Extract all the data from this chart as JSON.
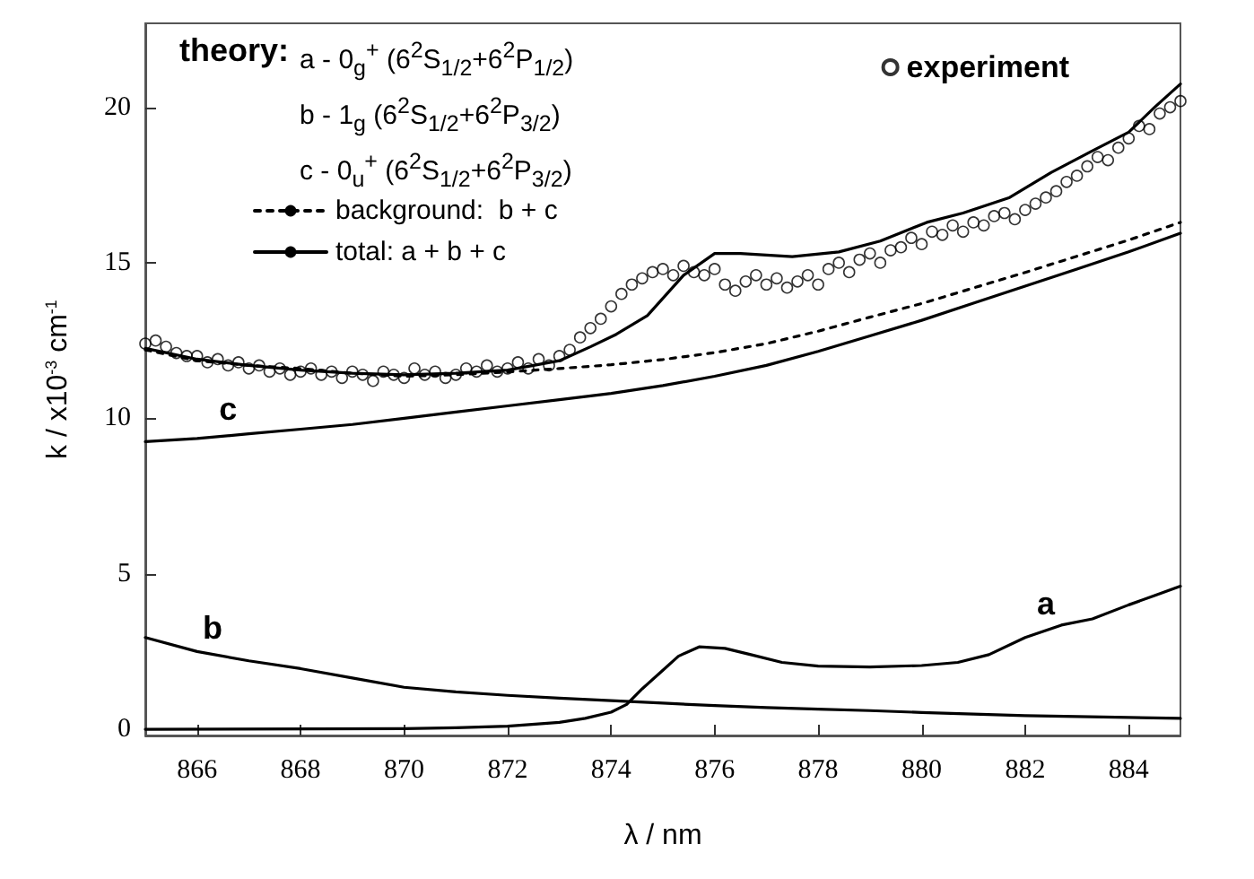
{
  "chart_data": {
    "type": "line",
    "xlabel": "λ / nm",
    "ylabel": "k / x10$^{-3}$ cm$^{-1}$",
    "legend_title": "theory:",
    "xlim": [
      865,
      885
    ],
    "xticks": [
      866,
      868,
      870,
      872,
      874,
      876,
      878,
      880,
      882,
      884
    ],
    "ylim": [
      -0.2,
      22.7
    ],
    "yticks": [
      0,
      5,
      10,
      15,
      20
    ],
    "grid": false,
    "legend": "top left",
    "annotations": [
      "a -  0$_{g}$$^{+}$ (6$^{2}$S$_{1/2}$+6$^{2}$P$_{1/2}$)",
      "b -  1$_{g}$ (6$^{2}$S$_{1/2}$+6$^{2}$P$_{3/2}$)",
      "c -  0$_{u}$$^{+}$ (6$^{2}$S$_{1/2}$+6$^{2}$P$_{3/2}$)",
      {
        "text": "a",
        "x": 882.4,
        "y": 3.18
      },
      {
        "text": "b",
        "x": 866.3,
        "y": 2.41
      },
      {
        "text": "c",
        "x": 866.6,
        "y": 9.44
      }
    ],
    "series": [
      {
        "color": "#000000",
        "line_style": "solid",
        "marker": "none",
        "x": [
          865,
          870,
          871,
          872,
          873,
          873.5,
          874,
          874.3,
          874.6,
          875,
          875.3,
          875.7,
          876.2,
          876.7,
          877.3,
          878,
          879,
          880,
          880.7,
          881.3,
          882,
          882.7,
          883.3,
          884,
          884.5,
          885
        ],
        "values": [
          0,
          0.02,
          0.05,
          0.1,
          0.22,
          0.35,
          0.55,
          0.8,
          1.3,
          1.9,
          2.35,
          2.65,
          2.6,
          2.4,
          2.15,
          2.03,
          2.0,
          2.05,
          2.15,
          2.4,
          2.95,
          3.35,
          3.55,
          4.0,
          4.3,
          4.6
        ]
      },
      {
        "color": "#000000",
        "line_style": "solid",
        "marker": "none",
        "x": [
          865,
          866,
          867,
          868,
          869,
          870,
          871,
          872,
          873,
          874,
          875,
          876,
          877,
          878,
          879,
          880,
          881,
          882,
          883,
          884,
          885
        ],
        "values": [
          2.95,
          2.5,
          2.2,
          1.95,
          1.65,
          1.35,
          1.2,
          1.09,
          1.0,
          0.92,
          0.84,
          0.76,
          0.7,
          0.65,
          0.6,
          0.54,
          0.49,
          0.44,
          0.41,
          0.38,
          0.35
        ]
      },
      {
        "color": "#000000",
        "line_style": "solid",
        "marker": "none",
        "x": [
          865,
          866,
          867,
          868,
          869,
          870,
          871,
          872,
          873,
          874,
          875,
          876,
          877,
          878,
          879,
          880,
          881,
          882,
          883,
          884,
          885
        ],
        "values": [
          9.25,
          9.35,
          9.5,
          9.65,
          9.8,
          10.0,
          10.2,
          10.4,
          10.6,
          10.8,
          11.05,
          11.35,
          11.7,
          12.15,
          12.65,
          13.15,
          13.7,
          14.25,
          14.8,
          15.35,
          15.95
        ]
      },
      {
        "name": "background:  b + c",
        "color": "#000000",
        "line_style": "dashed",
        "marker": "none",
        "x": [
          865,
          866,
          867,
          868,
          869,
          870,
          871,
          872,
          873,
          874,
          875,
          876,
          877,
          878,
          879,
          880,
          881,
          882,
          883,
          884,
          885
        ],
        "values": [
          12.2,
          11.85,
          11.7,
          11.6,
          11.45,
          11.35,
          11.4,
          11.49,
          11.6,
          11.72,
          11.89,
          12.11,
          12.4,
          12.8,
          13.25,
          13.69,
          14.19,
          14.69,
          15.21,
          15.73,
          16.3
        ]
      },
      {
        "name": "total: a + b + c",
        "color": "#000000",
        "line_style": "solid",
        "marker": "none",
        "x": [
          865,
          866,
          867,
          868,
          869,
          870,
          871,
          872,
          873,
          873.6,
          874.1,
          874.7,
          875.4,
          876,
          876.5,
          877.5,
          878.4,
          879.2,
          880.1,
          880.8,
          881.7,
          882.5,
          883.3,
          884,
          884.5,
          885
        ],
        "values": [
          12.25,
          11.9,
          11.7,
          11.55,
          11.45,
          11.4,
          11.45,
          11.55,
          11.85,
          12.3,
          12.7,
          13.3,
          14.6,
          15.3,
          15.3,
          15.2,
          15.35,
          15.7,
          16.3,
          16.6,
          17.1,
          17.9,
          18.6,
          19.2,
          20.0,
          20.75
        ]
      },
      {
        "name": "experiment",
        "type": "scatter",
        "color": "#000000",
        "marker": "circle",
        "x": [
          865.0,
          865.2,
          865.4,
          865.6,
          865.8,
          866.0,
          866.2,
          866.4,
          866.6,
          866.8,
          867.0,
          867.2,
          867.4,
          867.6,
          867.8,
          868.0,
          868.2,
          868.4,
          868.6,
          868.8,
          869.0,
          869.2,
          869.4,
          869.6,
          869.8,
          870.0,
          870.2,
          870.4,
          870.6,
          870.8,
          871.0,
          871.2,
          871.4,
          871.6,
          871.8,
          872.0,
          872.2,
          872.4,
          872.6,
          872.8,
          873.0,
          873.2,
          873.4,
          873.6,
          873.8,
          874.0,
          874.2,
          874.4,
          874.6,
          874.8,
          875.0,
          875.2,
          875.4,
          875.6,
          875.8,
          876.0,
          876.2,
          876.4,
          876.6,
          876.8,
          877.0,
          877.2,
          877.4,
          877.6,
          877.8,
          878.0,
          878.2,
          878.4,
          878.6,
          878.8,
          879.0,
          879.2,
          879.4,
          879.6,
          879.8,
          880.0,
          880.2,
          880.4,
          880.6,
          880.8,
          881.0,
          881.2,
          881.4,
          881.6,
          881.8,
          882.0,
          882.2,
          882.4,
          882.6,
          882.8,
          883.0,
          883.2,
          883.4,
          883.6,
          883.8,
          884.0,
          884.2,
          884.4,
          884.6,
          884.8,
          885.0
        ],
        "values": [
          12.4,
          12.5,
          12.3,
          12.1,
          12.0,
          12.0,
          11.8,
          11.9,
          11.7,
          11.8,
          11.6,
          11.7,
          11.5,
          11.6,
          11.4,
          11.5,
          11.6,
          11.4,
          11.5,
          11.3,
          11.5,
          11.4,
          11.2,
          11.5,
          11.4,
          11.3,
          11.6,
          11.4,
          11.5,
          11.3,
          11.4,
          11.6,
          11.5,
          11.7,
          11.5,
          11.6,
          11.8,
          11.6,
          11.9,
          11.7,
          12.0,
          12.2,
          12.6,
          12.9,
          13.2,
          13.6,
          14.0,
          14.3,
          14.5,
          14.7,
          14.8,
          14.6,
          14.9,
          14.7,
          14.6,
          14.8,
          14.3,
          14.1,
          14.4,
          14.6,
          14.3,
          14.5,
          14.2,
          14.4,
          14.6,
          14.3,
          14.8,
          15.0,
          14.7,
          15.1,
          15.3,
          15.0,
          15.4,
          15.5,
          15.8,
          15.6,
          16.0,
          15.9,
          16.2,
          16.0,
          16.3,
          16.2,
          16.5,
          16.6,
          16.4,
          16.7,
          16.9,
          17.1,
          17.3,
          17.6,
          17.8,
          18.1,
          18.4,
          18.3,
          18.7,
          19.0,
          19.4,
          19.3,
          19.8,
          20.0,
          20.2
        ]
      }
    ]
  }
}
